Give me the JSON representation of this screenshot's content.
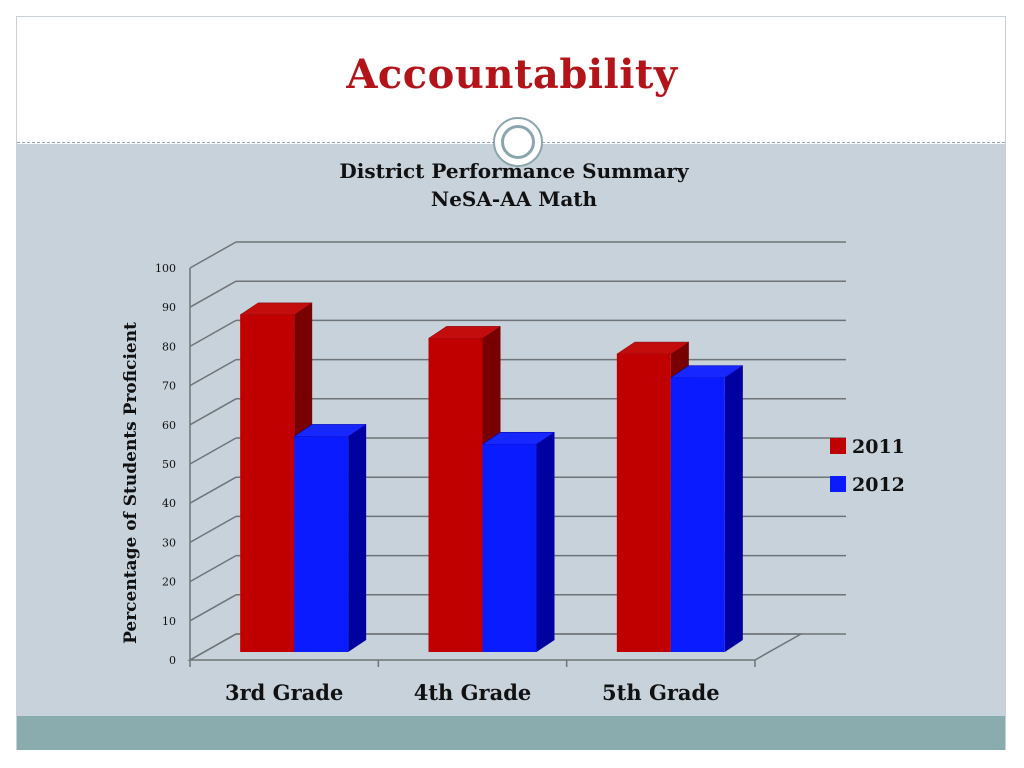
{
  "slide": {
    "title": "Accountability"
  },
  "colors": {
    "title": "#b3141a",
    "content_bg": "#c7d2da",
    "footer": "#8aacae",
    "series_2011_front": "#c00000",
    "series_2011_side": "#780000",
    "series_2012_front": "#0a1cff",
    "series_2012_side": "#0000a0"
  },
  "chart_data": {
    "type": "bar",
    "title": "District Performance Summary",
    "subtitle": "NeSA-AA Math",
    "xlabel": "",
    "ylabel": "Percentage of Students Proficient",
    "ylim": [
      0,
      100
    ],
    "yticks": [
      "0",
      "10",
      "20",
      "30",
      "40",
      "50",
      "60",
      "70",
      "80",
      "90",
      "100"
    ],
    "grid": true,
    "legend_position": "right",
    "categories": [
      "3rd Grade",
      "4th Grade",
      "5th Grade"
    ],
    "series": [
      {
        "name": "2011",
        "values": [
          86,
          80,
          76
        ]
      },
      {
        "name": "2012",
        "values": [
          55,
          53,
          70
        ]
      }
    ]
  }
}
